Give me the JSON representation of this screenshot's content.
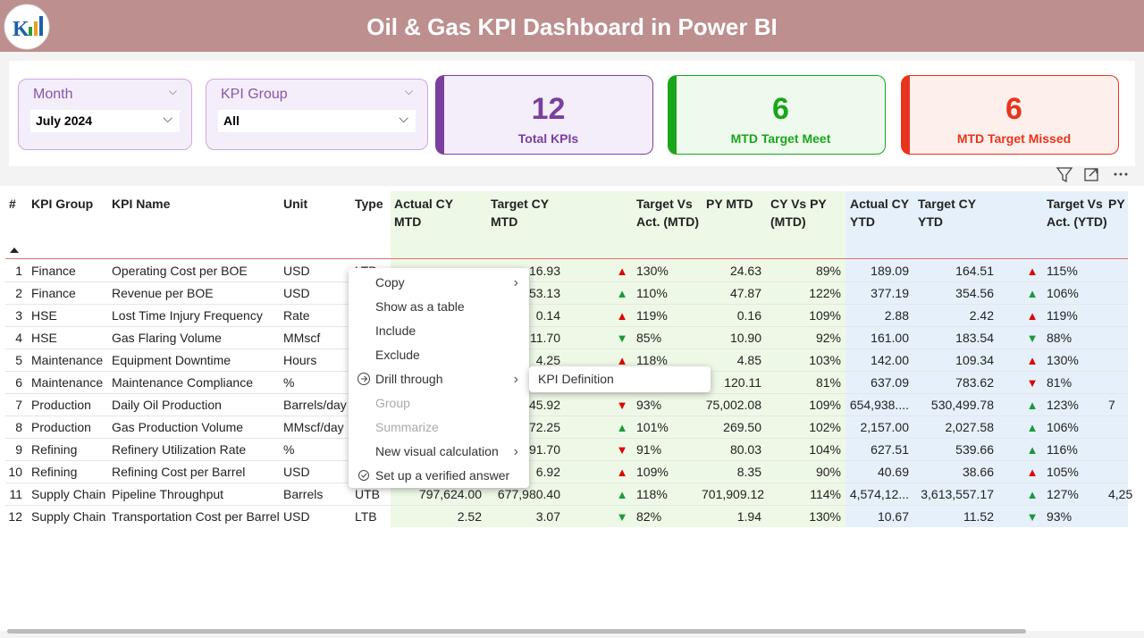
{
  "header": {
    "title": "Oil & Gas KPI Dashboard in Power BI"
  },
  "slicers": [
    {
      "label": "Month",
      "value": "July 2024"
    },
    {
      "label": "KPI Group",
      "value": "All"
    }
  ],
  "cards": [
    {
      "value": 12,
      "label": "Total KPIs",
      "color": "#7b3f9e"
    },
    {
      "value": 6,
      "label": "MTD Target Meet",
      "color": "#1aa51a"
    },
    {
      "value": 6,
      "label": "MTD Target Missed",
      "color": "#e8341c"
    }
  ],
  "table": {
    "columns": [
      "#",
      "KPI Group",
      "KPI Name",
      "Unit",
      "Type",
      "Actual CY MTD",
      "Target CY MTD",
      null,
      "Target Vs Act. (MTD)",
      "PY MTD",
      "CY Vs PY (MTD)",
      "Actual CY YTD",
      "Target CY YTD",
      null,
      "Target Vs Act. (YTD)",
      "PY"
    ],
    "rows": [
      {
        "cells": [
          "1",
          "Finance",
          "Operating Cost per BOE",
          "USD",
          "LTB",
          null,
          "16.93",
          "▲",
          "130%",
          "24.63",
          "89%",
          "189.09",
          "164.51",
          "▲",
          "115%",
          null
        ],
        "arrow_colors": [
          "#e00000",
          "#e00000"
        ]
      },
      {
        "cells": [
          "2",
          "Finance",
          "Revenue per BOE",
          "USD",
          null,
          null,
          "53.13",
          "▲",
          "110%",
          "47.87",
          "122%",
          "377.19",
          "354.56",
          "▲",
          "106%",
          null
        ],
        "arrow_colors": [
          "#1a9a3a",
          "#1a9a3a"
        ]
      },
      {
        "cells": [
          "3",
          "HSE",
          "Lost Time Injury Frequency",
          "Rate",
          null,
          null,
          "0.14",
          "▲",
          "119%",
          "0.16",
          "109%",
          "2.88",
          "2.42",
          "▲",
          "119%",
          null
        ],
        "arrow_colors": [
          "#e00000",
          "#e00000"
        ]
      },
      {
        "cells": [
          "4",
          "HSE",
          "Gas Flaring Volume",
          "MMscf",
          null,
          null,
          "11.70",
          "▼",
          "85%",
          "10.90",
          "92%",
          "161.00",
          "183.54",
          "▼",
          "88%",
          null
        ],
        "arrow_colors": [
          "#1a9a3a",
          "#1a9a3a"
        ]
      },
      {
        "cells": [
          "5",
          "Maintenance",
          "Equipment Downtime",
          "Hours",
          null,
          null,
          "4.25",
          "▲",
          "118%",
          "4.85",
          "103%",
          "142.00",
          "109.34",
          "▲",
          "130%",
          null
        ],
        "arrow_colors": [
          "#e00000",
          "#e00000"
        ]
      },
      {
        "cells": [
          "6",
          "Maintenance",
          "Maintenance Compliance",
          "%",
          null,
          null,
          null,
          null,
          null,
          "120.11",
          "81%",
          "637.09",
          "783.62",
          "▼",
          "81%",
          null
        ],
        "arrow_colors": [
          "#e00000",
          "#e00000"
        ]
      },
      {
        "cells": [
          "7",
          "Production",
          "Daily Oil Production",
          "Barrels/day",
          null,
          null,
          "45.92",
          "▼",
          "93%",
          "75,002.08",
          "109%",
          "654,938....",
          "530,499.78",
          "▲",
          "123%",
          "7"
        ],
        "arrow_colors": [
          "#e00000",
          "#1a9a3a"
        ]
      },
      {
        "cells": [
          "8",
          "Production",
          "Gas Production Volume",
          "MMscf/day",
          null,
          null,
          "72.25",
          "▲",
          "101%",
          "269.50",
          "102%",
          "2,157.00",
          "2,027.58",
          "▲",
          "106%",
          null
        ],
        "arrow_colors": [
          "#1a9a3a",
          "#1a9a3a"
        ]
      },
      {
        "cells": [
          "9",
          "Refining",
          "Refinery Utilization Rate",
          "%",
          null,
          null,
          "91.70",
          "▼",
          "91%",
          "80.03",
          "104%",
          "627.51",
          "539.66",
          "▲",
          "116%",
          null
        ],
        "arrow_colors": [
          "#e00000",
          "#1a9a3a"
        ]
      },
      {
        "cells": [
          "10",
          "Refining",
          "Refining Cost per Barrel",
          "USD",
          null,
          null,
          "6.92",
          "▲",
          "109%",
          "8.35",
          "90%",
          "40.69",
          "38.66",
          "▲",
          "105%",
          null
        ],
        "arrow_colors": [
          "#e00000",
          "#e00000"
        ]
      },
      {
        "cells": [
          "11",
          "Supply Chain",
          "Pipeline Throughput",
          "Barrels",
          "UTB",
          "797,624.00",
          "677,980.40",
          "▲",
          "118%",
          "701,909.12",
          "114%",
          "4,574,12...",
          "3,613,557.17",
          "▲",
          "127%",
          "4,25"
        ],
        "arrow_colors": [
          "#1a9a3a",
          "#1a9a3a"
        ]
      },
      {
        "cells": [
          "12",
          "Supply Chain",
          "Transportation Cost per Barrel",
          "USD",
          "LTB",
          "2.52",
          "3.07",
          "▼",
          "82%",
          "1.94",
          "130%",
          "10.67",
          "11.52",
          "▼",
          "93%",
          null
        ],
        "arrow_colors": [
          "#1a9a3a",
          "#1a9a3a"
        ]
      }
    ]
  },
  "context_menu": {
    "items": [
      {
        "label": "Copy",
        "submenu": true
      },
      {
        "label": "Show as a table"
      },
      {
        "label": "Include"
      },
      {
        "label": "Exclude"
      },
      {
        "label": "Drill through",
        "submenu": true
      },
      {
        "label": "Group",
        "disabled": true
      },
      {
        "label": "Summarize",
        "disabled": true
      },
      {
        "label": "New visual calculation",
        "submenu": true
      },
      {
        "label": "Set up a verified answer"
      }
    ],
    "submenu": [
      "KPI Definition"
    ]
  }
}
